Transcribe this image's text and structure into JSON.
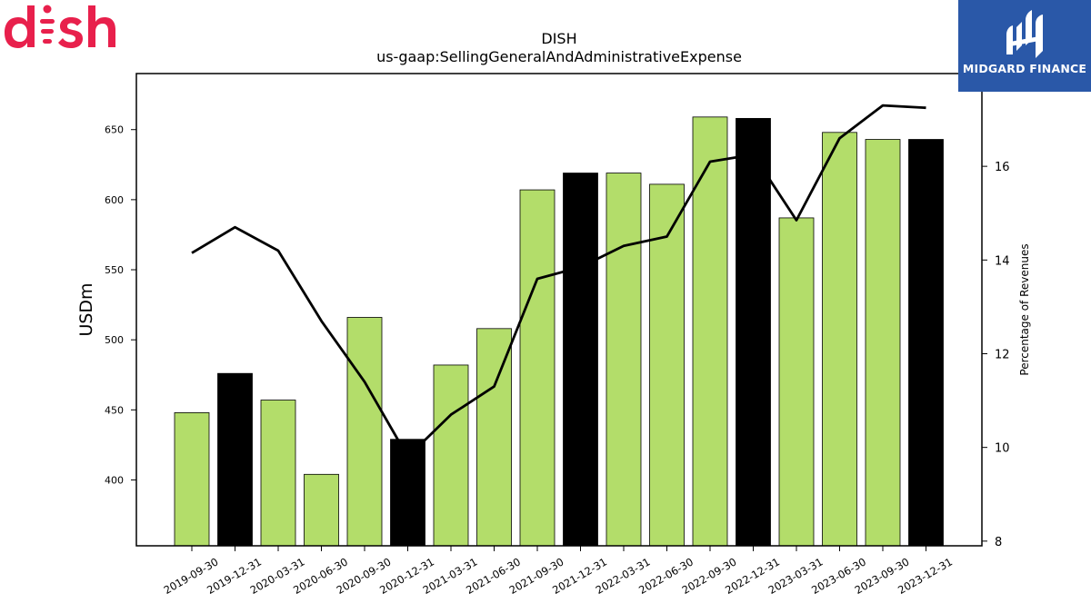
{
  "brand": {
    "company_logo": "dish",
    "company_logo_color": "#e8204c",
    "publisher_logo": "MIDGARD FINANCE",
    "publisher_color": "#2a58a8"
  },
  "chart_data": {
    "type": "bar",
    "title": "DISH",
    "subtitle": "us-gaap:SellingGeneralAndAdministrativeExpense",
    "ylabel": "USDm",
    "y2label": "Percentage of Revenues",
    "categories": [
      "2019-09-30",
      "2019-12-31",
      "2020-03-31",
      "2020-06-30",
      "2020-09-30",
      "2020-12-31",
      "2021-03-31",
      "2021-06-30",
      "2021-09-30",
      "2021-12-31",
      "2022-03-31",
      "2022-06-30",
      "2022-09-30",
      "2022-12-31",
      "2023-03-31",
      "2023-06-30",
      "2023-09-30",
      "2023-12-31"
    ],
    "series": [
      {
        "type": "bar",
        "values": [
          448,
          476,
          457,
          404,
          516,
          429,
          482,
          508,
          607,
          619,
          619,
          611,
          659,
          658,
          587,
          648,
          643,
          643
        ],
        "colors": [
          "#b3dd6a",
          "#000000",
          "#b3dd6a",
          "#b3dd6a",
          "#b3dd6a",
          "#000000",
          "#b3dd6a",
          "#b3dd6a",
          "#b3dd6a",
          "#000000",
          "#b3dd6a",
          "#b3dd6a",
          "#b3dd6a",
          "#000000",
          "#b3dd6a",
          "#b3dd6a",
          "#b3dd6a",
          "#000000"
        ]
      },
      {
        "type": "line",
        "axis": "right",
        "color": "#000000",
        "values": [
          14.15,
          14.7,
          14.2,
          12.7,
          11.4,
          9.8,
          10.7,
          11.3,
          13.6,
          13.85,
          14.3,
          14.5,
          16.1,
          16.25,
          14.85,
          16.6,
          17.3,
          17.25
        ]
      }
    ],
    "ylim": [
      353,
      690
    ],
    "y2lim": [
      7.9,
      17.98
    ],
    "yticks": [
      400,
      450,
      500,
      550,
      600,
      650
    ],
    "y2ticks": [
      8,
      10,
      12,
      14,
      16
    ],
    "legend": "none",
    "grid": false
  }
}
